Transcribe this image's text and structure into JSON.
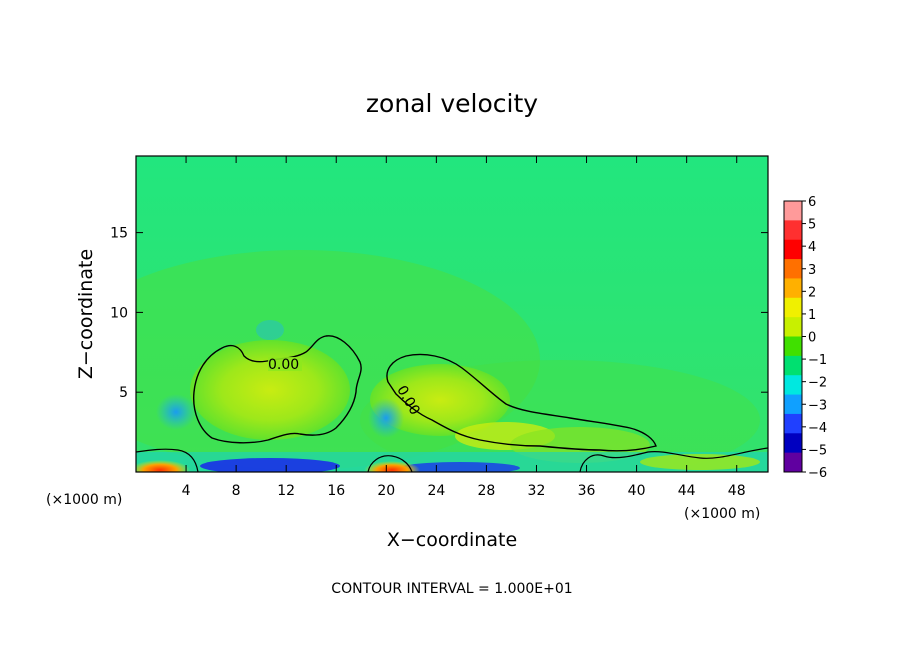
{
  "chart_data": {
    "type": "heatmap",
    "title": "zonal velocity",
    "xlabel": "X−coordinate",
    "ylabel": "Z−coordinate",
    "x_unit_left": "(×1000 m)",
    "x_unit_right": "(×1000 m)",
    "xlim": [
      0,
      50.5
    ],
    "ylim": [
      0,
      19.8
    ],
    "x_ticks": [
      4,
      8,
      12,
      16,
      20,
      24,
      28,
      32,
      36,
      40,
      44,
      48
    ],
    "x_tick_labels": [
      "4",
      "8",
      "12",
      "16",
      "20",
      "24",
      "28",
      "32",
      "36",
      "40",
      "44",
      "48"
    ],
    "y_ticks": [
      5,
      10,
      15
    ],
    "y_tick_labels": [
      "5",
      "10",
      "15"
    ],
    "contour_labels": [
      "0.00",
      "0.00"
    ],
    "colorbar": {
      "levels": [
        6,
        5,
        4,
        3,
        2,
        1,
        0,
        -1,
        -2,
        -3,
        -4,
        -5,
        -6
      ],
      "labels": [
        "6",
        "5",
        "4",
        "3",
        "2",
        "1",
        "0",
        "−1",
        "−2",
        "−3",
        "−4",
        "−5",
        "−6"
      ],
      "colors": [
        "#ff9a9a",
        "#ff3030",
        "#ff0000",
        "#ff7000",
        "#ffb000",
        "#f0f000",
        "#c8f000",
        "#40e000",
        "#00e070",
        "#00e8e0",
        "#10a0ff",
        "#2040ff",
        "#0000c0",
        "#6000a0"
      ]
    },
    "field_colors": {
      "background": "#24e67a",
      "positive_region": "#8ee81e",
      "positive_core": "#c4ec10",
      "negative": "#1eb4ee",
      "strong_negative": "#1a30e8",
      "strong_positive": "#ff4000"
    },
    "footer": "CONTOUR INTERVAL = 1.000E+01"
  }
}
